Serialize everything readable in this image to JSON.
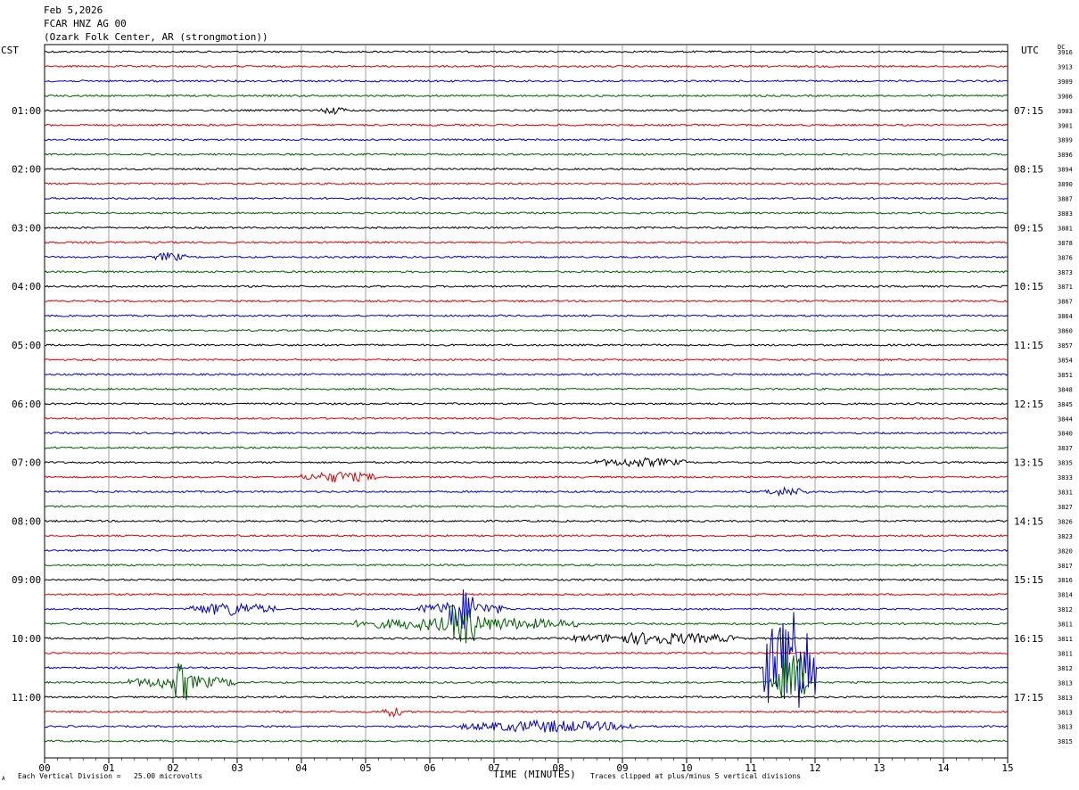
{
  "header": {
    "date": "Feb 5,2026",
    "station": "FCAR HNZ AG 00",
    "location": "(Ozark Folk Center, AR (strongmotion))"
  },
  "left_zone_label": "CST",
  "right_zone_label": "UTC",
  "dc_label": "DC",
  "footer": {
    "scale_note": "Each Vertical Division =   25.00 microvolts",
    "clip_note": "Traces clipped at plus/minus 5 vertical divisions",
    "corner_mark": "A"
  },
  "colors": {
    "trace_cycle": [
      "#000000",
      "#e00000",
      "#0000d0",
      "#006000"
    ],
    "grid": "#888888"
  },
  "chart_data": {
    "type": "line",
    "title": "",
    "xlabel": "TIME (MINUTES)",
    "ylabel": "",
    "xlim": [
      0,
      15
    ],
    "x_ticks": [
      "00",
      "01",
      "02",
      "03",
      "04",
      "05",
      "06",
      "07",
      "08",
      "09",
      "10",
      "11",
      "12",
      "13",
      "14",
      "15"
    ],
    "grid": true,
    "rows_per_hour": 4,
    "left_hour_labels": [
      "01:00",
      "02:00",
      "03:00",
      "04:00",
      "05:00",
      "06:00",
      "07:00",
      "08:00",
      "09:00",
      "10:00",
      "11:00"
    ],
    "right_hour_labels": [
      "07:15",
      "08:15",
      "09:15",
      "10:15",
      "11:15",
      "12:15",
      "13:15",
      "14:15",
      "15:15",
      "16:15",
      "17:15"
    ],
    "dc_offsets": [
      "3916",
      "3913",
      "3909",
      "3906",
      "3903",
      "3901",
      "3899",
      "3896",
      "3894",
      "3890",
      "3887",
      "3883",
      "3881",
      "3878",
      "3876",
      "3873",
      "3871",
      "3867",
      "3864",
      "3860",
      "3857",
      "3854",
      "3851",
      "3848",
      "3845",
      "3844",
      "3840",
      "3837",
      "3835",
      "3833",
      "3831",
      "3827",
      "3826",
      "3823",
      "3820",
      "3817",
      "3816",
      "3814",
      "3812",
      "3811",
      "3811",
      "3811",
      "3812",
      "3813",
      "3813",
      "3813",
      "3813",
      "3815"
    ],
    "events": [
      {
        "row": 4,
        "start_min": 4.3,
        "end_min": 4.7,
        "amp": 1.2
      },
      {
        "row": 14,
        "start_min": 1.7,
        "end_min": 2.2,
        "amp": 1.5
      },
      {
        "row": 28,
        "start_min": 8.5,
        "end_min": 10.0,
        "amp": 1.4
      },
      {
        "row": 29,
        "start_min": 4.0,
        "end_min": 5.2,
        "amp": 1.8
      },
      {
        "row": 30,
        "start_min": 11.2,
        "end_min": 11.9,
        "amp": 1.4
      },
      {
        "row": 38,
        "start_min": 2.2,
        "end_min": 3.6,
        "amp": 2.2
      },
      {
        "row": 38,
        "start_min": 5.8,
        "end_min": 7.2,
        "amp": 2.6
      },
      {
        "row": 39,
        "start_min": 4.8,
        "end_min": 8.3,
        "amp": 2.4
      },
      {
        "row": 40,
        "start_min": 8.2,
        "end_min": 10.8,
        "amp": 2.0
      },
      {
        "row": 42,
        "start_min": 11.2,
        "end_min": 12.0,
        "amp": 10.0
      },
      {
        "row": 43,
        "start_min": 1.3,
        "end_min": 3.0,
        "amp": 2.4
      },
      {
        "row": 43,
        "start_min": 11.3,
        "end_min": 11.9,
        "amp": 4.5
      },
      {
        "row": 45,
        "start_min": 5.2,
        "end_min": 5.6,
        "amp": 1.6
      },
      {
        "row": 46,
        "start_min": 6.5,
        "end_min": 9.2,
        "amp": 2.0
      }
    ]
  }
}
